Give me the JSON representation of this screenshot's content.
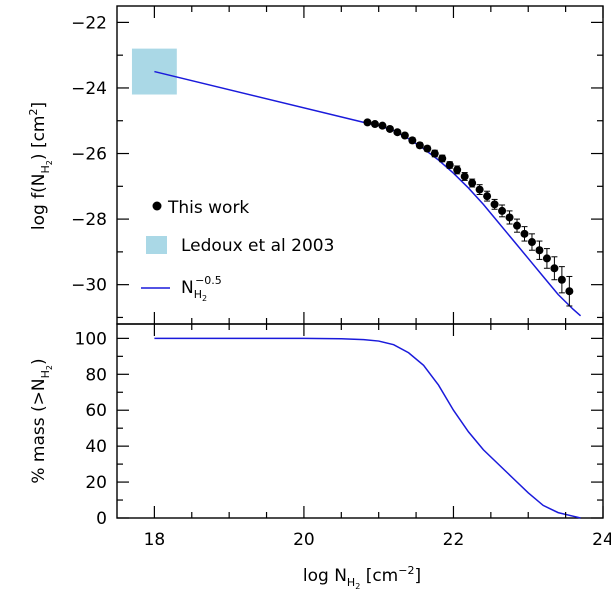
{
  "chart_data": [
    {
      "panel": "top",
      "type": "line",
      "ylabel": {
        "pre": "log f(N",
        "sub": "H",
        "subsub": "2",
        "post": ") [cm",
        "sup": "2",
        "end": "]"
      },
      "xlim": [
        17.5,
        24
      ],
      "ylim": [
        -31.2,
        -21.5
      ],
      "yticks": [
        -22,
        -24,
        -26,
        -28,
        -30
      ],
      "ytick_labels": [
        "−22",
        "−24",
        "−26",
        "−28",
        "−30"
      ],
      "legend": {
        "placement": "lower-left",
        "this_work": "This work",
        "ledoux": "Ledoux et al 2003",
        "powerlaw": {
          "base": "N",
          "sub": "H",
          "subsub": "2",
          "sup": "−0.5"
        }
      },
      "colors": {
        "line": "#1a1adb",
        "box": "#aad8e6",
        "points": "#000000"
      },
      "ledoux_box": {
        "x": [
          17.7,
          18.3
        ],
        "y": [
          -24.2,
          -22.8
        ]
      },
      "powerlaw_line": {
        "x": [
          18.0,
          20.8
        ],
        "y": [
          -23.5,
          -25.05
        ]
      },
      "model_curve": {
        "x": [
          20.8,
          21.0,
          21.2,
          21.4,
          21.6,
          21.8,
          22.0,
          22.2,
          22.4,
          22.6,
          22.8,
          23.0,
          23.2,
          23.4,
          23.6,
          23.7
        ],
        "y": [
          -25.05,
          -25.15,
          -25.3,
          -25.55,
          -25.85,
          -26.2,
          -26.6,
          -27.05,
          -27.55,
          -28.1,
          -28.65,
          -29.2,
          -29.75,
          -30.3,
          -30.75,
          -30.95
        ]
      },
      "series": [
        {
          "name": "This work",
          "x": [
            20.85,
            20.95,
            21.05,
            21.15,
            21.25,
            21.35,
            21.45,
            21.55,
            21.65,
            21.75,
            21.85,
            21.95,
            22.05,
            22.15,
            22.25,
            22.35,
            22.45,
            22.55,
            22.65,
            22.75,
            22.85,
            22.95,
            23.05,
            23.15,
            23.25,
            23.35,
            23.45,
            23.55
          ],
          "y": [
            -25.05,
            -25.1,
            -25.15,
            -25.25,
            -25.35,
            -25.45,
            -25.6,
            -25.75,
            -25.85,
            -26.0,
            -26.15,
            -26.35,
            -26.5,
            -26.7,
            -26.9,
            -27.1,
            -27.3,
            -27.55,
            -27.75,
            -27.95,
            -28.2,
            -28.45,
            -28.7,
            -28.95,
            -29.2,
            -29.5,
            -29.85,
            -30.2
          ],
          "yerr": [
            0.05,
            0.05,
            0.05,
            0.05,
            0.05,
            0.05,
            0.08,
            0.08,
            0.08,
            0.1,
            0.1,
            0.1,
            0.12,
            0.12,
            0.12,
            0.15,
            0.15,
            0.15,
            0.18,
            0.2,
            0.2,
            0.22,
            0.25,
            0.28,
            0.3,
            0.35,
            0.4,
            0.45
          ]
        }
      ]
    },
    {
      "panel": "bottom",
      "type": "line",
      "ylabel": {
        "pre": "% mass (>N",
        "sub": "H",
        "subsub": "2",
        "post": ")"
      },
      "xlabel": {
        "pre": "log N",
        "sub": "H",
        "subsub": "2",
        "post": " [cm",
        "sup": "−2",
        "end": "]"
      },
      "xlim": [
        17.5,
        24
      ],
      "ylim": [
        0,
        108
      ],
      "xticks": [
        18,
        20,
        22,
        24
      ],
      "xtick_labels": [
        "18",
        "20",
        "22",
        "24"
      ],
      "yticks": [
        0,
        20,
        40,
        60,
        80,
        100
      ],
      "ytick_labels": [
        "0",
        "20",
        "40",
        "60",
        "80",
        "100"
      ],
      "series": [
        {
          "x": [
            18.0,
            19.0,
            20.0,
            20.5,
            20.8,
            21.0,
            21.2,
            21.4,
            21.6,
            21.8,
            22.0,
            22.2,
            22.4,
            22.6,
            22.8,
            23.0,
            23.2,
            23.4,
            23.6,
            23.7
          ],
          "y": [
            100,
            100,
            100,
            99.8,
            99.3,
            98.5,
            96.5,
            92,
            85,
            74,
            60,
            48,
            38,
            30,
            22,
            14,
            7,
            3,
            1,
            0
          ]
        }
      ]
    }
  ]
}
